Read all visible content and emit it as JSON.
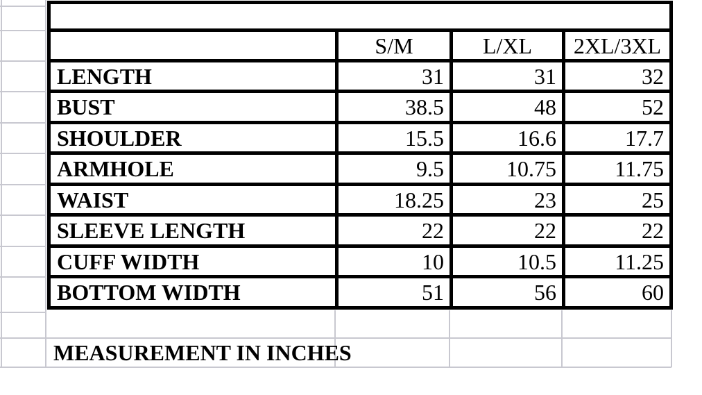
{
  "sheet": {
    "background": "#ffffff",
    "gridline_color": "#c8c8d0",
    "table_border_color": "#000000",
    "text_color": "#000000"
  },
  "size_chart": {
    "columns": [
      "S/M",
      "L/XL",
      "2XL/3XL"
    ],
    "rows": [
      {
        "label": "LENGTH",
        "values": [
          "31",
          "31",
          "32"
        ]
      },
      {
        "label": "BUST",
        "values": [
          "38.5",
          "48",
          "52"
        ]
      },
      {
        "label": "SHOULDER",
        "values": [
          "15.5",
          "16.6",
          "17.7"
        ]
      },
      {
        "label": "ARMHOLE",
        "values": [
          "9.5",
          "10.75",
          "11.75"
        ]
      },
      {
        "label": "WAIST",
        "values": [
          "18.25",
          "23",
          "25"
        ]
      },
      {
        "label": "SLEEVE LENGTH",
        "values": [
          "22",
          "22",
          "22"
        ]
      },
      {
        "label": "CUFF WIDTH",
        "values": [
          "10",
          "10.5",
          "11.25"
        ]
      },
      {
        "label": "BOTTOM WIDTH",
        "values": [
          "51",
          "56",
          "60"
        ]
      }
    ],
    "footnote": "MEASUREMENT IN INCHES"
  }
}
